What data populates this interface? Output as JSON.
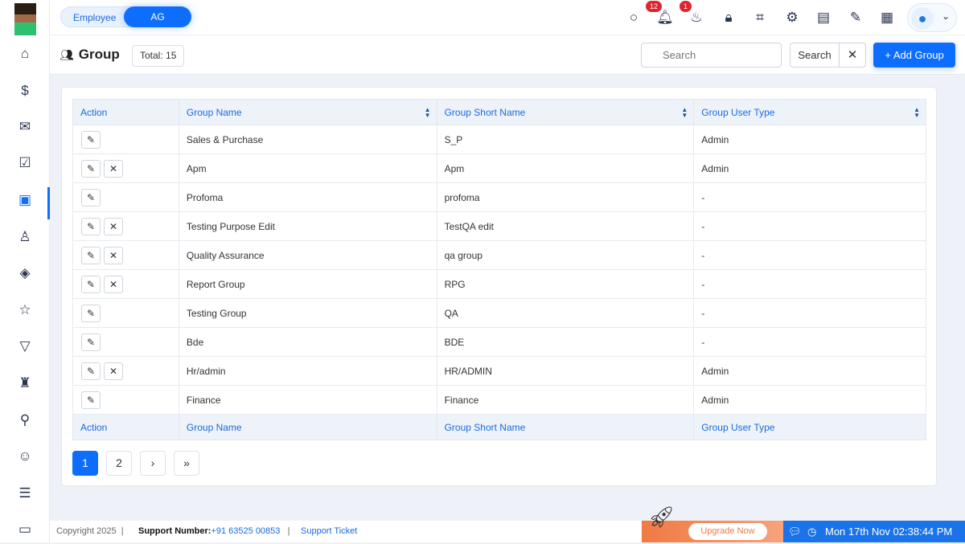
{
  "header": {
    "toggle": {
      "options": [
        "Employee",
        "AG"
      ],
      "selected": "AG"
    },
    "badges": {
      "notifications": "12",
      "birthdays": "1"
    }
  },
  "page": {
    "title": "Group",
    "total": "Total: 15",
    "search_placeholder": "Search",
    "search_button": "Search",
    "add_button": "Add Group"
  },
  "table": {
    "columns": [
      "Action",
      "Group Name",
      "Group Short Name",
      "Group User Type"
    ],
    "rows": [
      {
        "name": "Sales & Purchase",
        "short": "S_P",
        "type": "Admin",
        "deletable": false
      },
      {
        "name": "Apm",
        "short": "Apm",
        "type": "Admin",
        "deletable": true
      },
      {
        "name": "Profoma",
        "short": "profoma",
        "type": "-",
        "deletable": false
      },
      {
        "name": "Testing Purpose Edit",
        "short": "TestQA edit",
        "type": "-",
        "deletable": true
      },
      {
        "name": "Quality Assurance",
        "short": "qa group",
        "type": "-",
        "deletable": true
      },
      {
        "name": "Report Group",
        "short": "RPG",
        "type": "-",
        "deletable": true
      },
      {
        "name": "Testing Group",
        "short": "QA",
        "type": "-",
        "deletable": false
      },
      {
        "name": "Bde",
        "short": "BDE",
        "type": "-",
        "deletable": false
      },
      {
        "name": "Hr/admin",
        "short": "HR/ADMIN",
        "type": "Admin",
        "deletable": true
      },
      {
        "name": "Finance",
        "short": "Finance",
        "type": "Admin",
        "deletable": false
      }
    ]
  },
  "pagination": {
    "pages": [
      "1",
      "2"
    ],
    "current": "1",
    "next": "›",
    "last": "»"
  },
  "footer": {
    "copyright": "Copyright 2025",
    "support_label": "Support Number:",
    "support_number": "+91 63525 00853",
    "support_ticket": "Support Ticket",
    "upgrade": "Upgrade Now",
    "datetime": "Mon 17th Nov 02:38:44 PM"
  },
  "colors": {
    "accent": "#0d6efd",
    "upgrade": "#f07a43",
    "badge": "#e0252f"
  }
}
